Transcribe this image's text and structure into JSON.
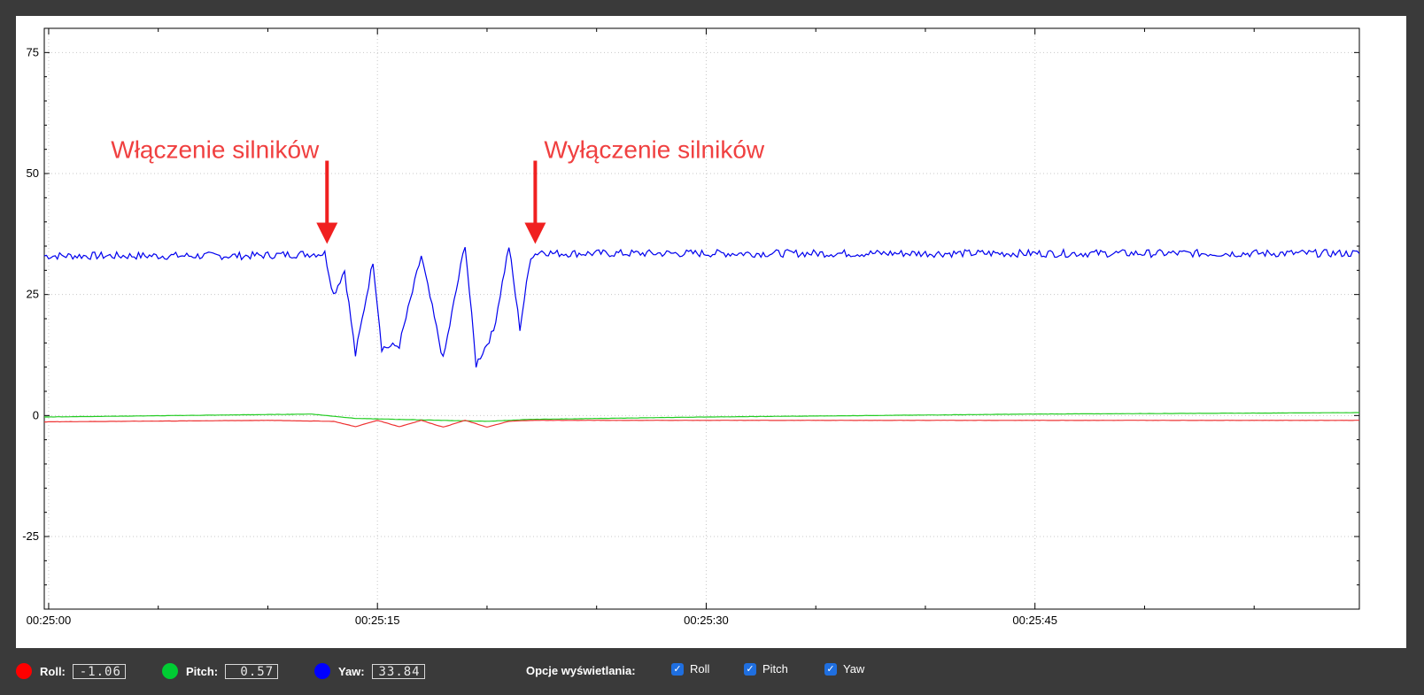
{
  "chart_data": {
    "type": "line",
    "title": "",
    "xlabel": "",
    "ylabel": "",
    "x_range_seconds": [
      1499.8,
      1559.8
    ],
    "ylim": [
      -40,
      80
    ],
    "y_ticks": [
      75,
      50,
      25,
      0,
      -25
    ],
    "x_ticks": [
      "00:25:00",
      "00:25:15",
      "00:25:30",
      "00:25:45"
    ],
    "grid": true,
    "series": [
      {
        "name": "Yaw",
        "color": "#0000ee",
        "x": [
          "00:24:59.8",
          "00:25:03",
          "00:25:06",
          "00:25:09",
          "00:25:12.6",
          "00:25:13",
          "00:25:13.5",
          "00:25:14",
          "00:25:14.8",
          "00:25:15.2",
          "00:25:16",
          "00:25:17",
          "00:25:18",
          "00:25:19",
          "00:25:19.5",
          "00:25:20.3",
          "00:25:21",
          "00:25:21.5",
          "00:25:22",
          "00:25:22.5",
          "00:25:23",
          "00:25:30",
          "00:25:40",
          "00:25:50",
          "00:25:59.8"
        ],
        "values": [
          33,
          33,
          33,
          33,
          33.5,
          25,
          30,
          12.5,
          32,
          14,
          14.5,
          33,
          11.5,
          35.5,
          10.5,
          17.5,
          35,
          18,
          33,
          34,
          33.5,
          33.5,
          33.5,
          33.5,
          33.5
        ]
      },
      {
        "name": "Pitch",
        "color": "#22cc22",
        "x": [
          "00:24:59.8",
          "00:25:10",
          "00:25:12",
          "00:25:14",
          "00:25:18",
          "00:25:20",
          "00:25:22",
          "00:25:30",
          "00:25:45",
          "00:25:59.8"
        ],
        "values": [
          -0.3,
          0.2,
          0.3,
          -0.6,
          -1.0,
          -1.2,
          -0.8,
          -0.3,
          0.3,
          0.6
        ]
      },
      {
        "name": "Roll",
        "color": "#ee3333",
        "x": [
          "00:24:59.8",
          "00:25:10",
          "00:25:13",
          "00:25:14",
          "00:25:15",
          "00:25:16",
          "00:25:17",
          "00:25:18",
          "00:25:19",
          "00:25:20",
          "00:25:21",
          "00:25:22",
          "00:25:30",
          "00:25:59.8"
        ],
        "values": [
          -1.3,
          -1.0,
          -1.2,
          -2.3,
          -1.0,
          -2.3,
          -1.0,
          -2.4,
          -1.0,
          -2.4,
          -1.2,
          -1.0,
          -1.0,
          -1.0
        ]
      }
    ],
    "annotations": [
      {
        "text": "Włączenie silników",
        "x": "00:25:12.7",
        "y": 34
      },
      {
        "text": "Wyłączenie silników",
        "x": "00:25:22.2",
        "y": 34
      }
    ]
  },
  "status_bar": {
    "roll": {
      "label": "Roll:",
      "value": "-1.06",
      "color": "#ff0000"
    },
    "pitch": {
      "label": "Pitch:",
      "value": "0.57",
      "color": "#00cc33"
    },
    "yaw": {
      "label": "Yaw:",
      "value": "33.84",
      "color": "#0000ff"
    },
    "options_label": "Opcje wyświetlania:",
    "checkboxes": [
      {
        "label": "Roll",
        "checked": true
      },
      {
        "label": "Pitch",
        "checked": true
      },
      {
        "label": "Yaw",
        "checked": true
      }
    ]
  }
}
